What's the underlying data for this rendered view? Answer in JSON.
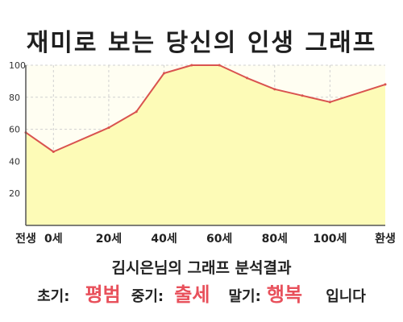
{
  "title": "재미로 보는 당신의 인생 그래프",
  "subtitle": "김시은님의 그래프 분석결과",
  "result": {
    "early_label": "초기:",
    "early_value": "평범",
    "mid_label": "중기:",
    "mid_value": "출세",
    "late_label": "말기:",
    "late_value": "행복",
    "suffix": "입니다"
  },
  "colors": {
    "line": "#d9534f",
    "fill": "#fdfbb7",
    "plot_bg": "#fffef2",
    "grid": "#d0d0d0",
    "highlight": "#e8505b"
  },
  "chart_data": {
    "type": "area",
    "x": [
      -10,
      0,
      20,
      30,
      40,
      50,
      60,
      70,
      80,
      90,
      100,
      120
    ],
    "values": [
      58,
      46,
      61,
      71,
      95,
      100,
      100,
      92,
      85,
      81,
      77,
      88
    ],
    "xlim": [
      -10,
      120
    ],
    "ylim": [
      0,
      100
    ],
    "x_ticks": [
      {
        "x": -10,
        "label": "전생"
      },
      {
        "x": 0,
        "label": "0세"
      },
      {
        "x": 20,
        "label": "20세"
      },
      {
        "x": 40,
        "label": "40세"
      },
      {
        "x": 60,
        "label": "60세"
      },
      {
        "x": 80,
        "label": "80세"
      },
      {
        "x": 100,
        "label": "100세"
      },
      {
        "x": 120,
        "label": "환생"
      }
    ],
    "y_ticks": [
      20,
      40,
      60,
      80,
      100
    ],
    "grid": true,
    "legend": false
  }
}
